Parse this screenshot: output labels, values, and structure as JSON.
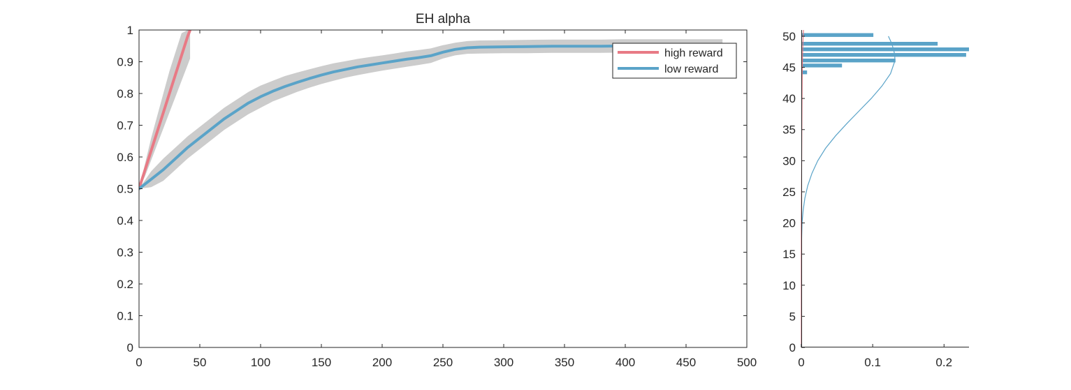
{
  "chart_data": [
    {
      "type": "line",
      "title": "EH  alpha",
      "xlabel": "",
      "ylabel": "",
      "xlim": [
        0,
        500
      ],
      "ylim": [
        0,
        1
      ],
      "xticks": [
        0,
        50,
        100,
        150,
        200,
        250,
        300,
        350,
        400,
        450,
        500
      ],
      "xtick_labels": [
        "0",
        "50",
        "100",
        "150",
        "200",
        "250",
        "300",
        "350",
        "400",
        "450",
        "500"
      ],
      "yticks": [
        0,
        0.1,
        0.2,
        0.3,
        0.4,
        0.5,
        0.6,
        0.7,
        0.8,
        0.9,
        1
      ],
      "ytick_labels": [
        "0",
        "0.1",
        "0.2",
        "0.3",
        "0.4",
        "0.5",
        "0.6",
        "0.7",
        "0.8",
        "0.9",
        "1"
      ],
      "grid": false,
      "legend": "top-right",
      "band_color": "#cccccc",
      "series": [
        {
          "name": "high reward",
          "color": "#e87a85",
          "x": [
            0,
            5,
            10,
            15,
            20,
            25,
            30,
            35,
            40,
            42
          ],
          "y": [
            0.5,
            0.56,
            0.62,
            0.68,
            0.74,
            0.8,
            0.86,
            0.92,
            0.98,
            1.0
          ],
          "lower": [
            0.5,
            0.54,
            0.59,
            0.64,
            0.69,
            0.74,
            0.79,
            0.84,
            0.89,
            0.91
          ],
          "upper": [
            0.5,
            0.58,
            0.66,
            0.73,
            0.8,
            0.87,
            0.93,
            0.99,
            1.0,
            1.0
          ]
        },
        {
          "name": "low reward",
          "color": "#5aa3c8",
          "x": [
            0,
            10,
            20,
            30,
            40,
            50,
            60,
            70,
            80,
            90,
            100,
            110,
            120,
            130,
            140,
            150,
            160,
            170,
            180,
            190,
            200,
            210,
            220,
            230,
            240,
            250,
            260,
            270,
            280,
            300,
            320,
            340,
            360,
            380,
            400,
            420,
            440,
            460,
            480
          ],
          "y": [
            0.5,
            0.53,
            0.56,
            0.595,
            0.63,
            0.66,
            0.69,
            0.72,
            0.745,
            0.77,
            0.79,
            0.807,
            0.822,
            0.835,
            0.847,
            0.858,
            0.868,
            0.876,
            0.884,
            0.89,
            0.896,
            0.902,
            0.908,
            0.913,
            0.919,
            0.93,
            0.939,
            0.944,
            0.946,
            0.947,
            0.948,
            0.949,
            0.949,
            0.949,
            0.95,
            0.95,
            0.95,
            0.95,
            0.95
          ],
          "lower": [
            0.5,
            0.505,
            0.525,
            0.56,
            0.595,
            0.625,
            0.655,
            0.685,
            0.71,
            0.735,
            0.755,
            0.775,
            0.79,
            0.805,
            0.818,
            0.83,
            0.84,
            0.85,
            0.858,
            0.865,
            0.872,
            0.878,
            0.884,
            0.89,
            0.896,
            0.91,
            0.92,
            0.925,
            0.926,
            0.927,
            0.927,
            0.928,
            0.928,
            0.928,
            0.929,
            0.929,
            0.929,
            0.929,
            0.929
          ],
          "upper": [
            0.5,
            0.555,
            0.595,
            0.63,
            0.665,
            0.695,
            0.725,
            0.755,
            0.78,
            0.805,
            0.825,
            0.84,
            0.855,
            0.866,
            0.876,
            0.886,
            0.895,
            0.902,
            0.909,
            0.915,
            0.92,
            0.926,
            0.932,
            0.937,
            0.942,
            0.952,
            0.96,
            0.965,
            0.967,
            0.968,
            0.969,
            0.97,
            0.97,
            0.97,
            0.971,
            0.971,
            0.971,
            0.971,
            0.971
          ]
        }
      ]
    },
    {
      "type": "bar",
      "orientation": "horizontal",
      "title": "",
      "xlabel": "",
      "ylabel": "",
      "xlim": [
        0,
        0.235
      ],
      "ylim": [
        0,
        51
      ],
      "xticks": [
        0,
        0.1,
        0.2
      ],
      "xtick_labels": [
        "0",
        "0.1",
        "0.2"
      ],
      "yticks": [
        0,
        5,
        10,
        15,
        20,
        25,
        30,
        35,
        40,
        45,
        50
      ],
      "ytick_labels": [
        "0",
        "5",
        "10",
        "15",
        "20",
        "25",
        "30",
        "35",
        "40",
        "45",
        "50"
      ],
      "grid": false,
      "bar_color": "#5aa3c8",
      "bar_height": 0.6,
      "bars": [
        {
          "y": 44.2,
          "value": 0.008
        },
        {
          "y": 45.3,
          "value": 0.057
        },
        {
          "y": 46.1,
          "value": 0.132
        },
        {
          "y": 47.0,
          "value": 0.231
        },
        {
          "y": 47.9,
          "value": 0.235
        },
        {
          "y": 48.8,
          "value": 0.191
        },
        {
          "y": 50.2,
          "value": 0.101
        }
      ],
      "fit_curves": [
        {
          "name": "low reward fit",
          "color": "#5aa3c8",
          "y": [
            0,
            10,
            15,
            18,
            20,
            22,
            24,
            26,
            28,
            30,
            32,
            34,
            36,
            38,
            40,
            42,
            44,
            46,
            47,
            48,
            49,
            50
          ],
          "value": [
            0.0,
            0.0,
            0.0,
            0.0005,
            0.001,
            0.0025,
            0.005,
            0.009,
            0.015,
            0.023,
            0.034,
            0.048,
            0.064,
            0.081,
            0.098,
            0.113,
            0.125,
            0.131,
            0.131,
            0.129,
            0.126,
            0.122
          ]
        },
        {
          "name": "high reward fit",
          "color": "#e87a85",
          "y": [
            0,
            20,
            30,
            36,
            40,
            43,
            46,
            48,
            50,
            51
          ],
          "value": [
            0.0,
            0.0,
            0.0005,
            0.0008,
            0.001,
            0.0012,
            0.0016,
            0.002,
            0.0025,
            0.003
          ]
        }
      ]
    }
  ]
}
